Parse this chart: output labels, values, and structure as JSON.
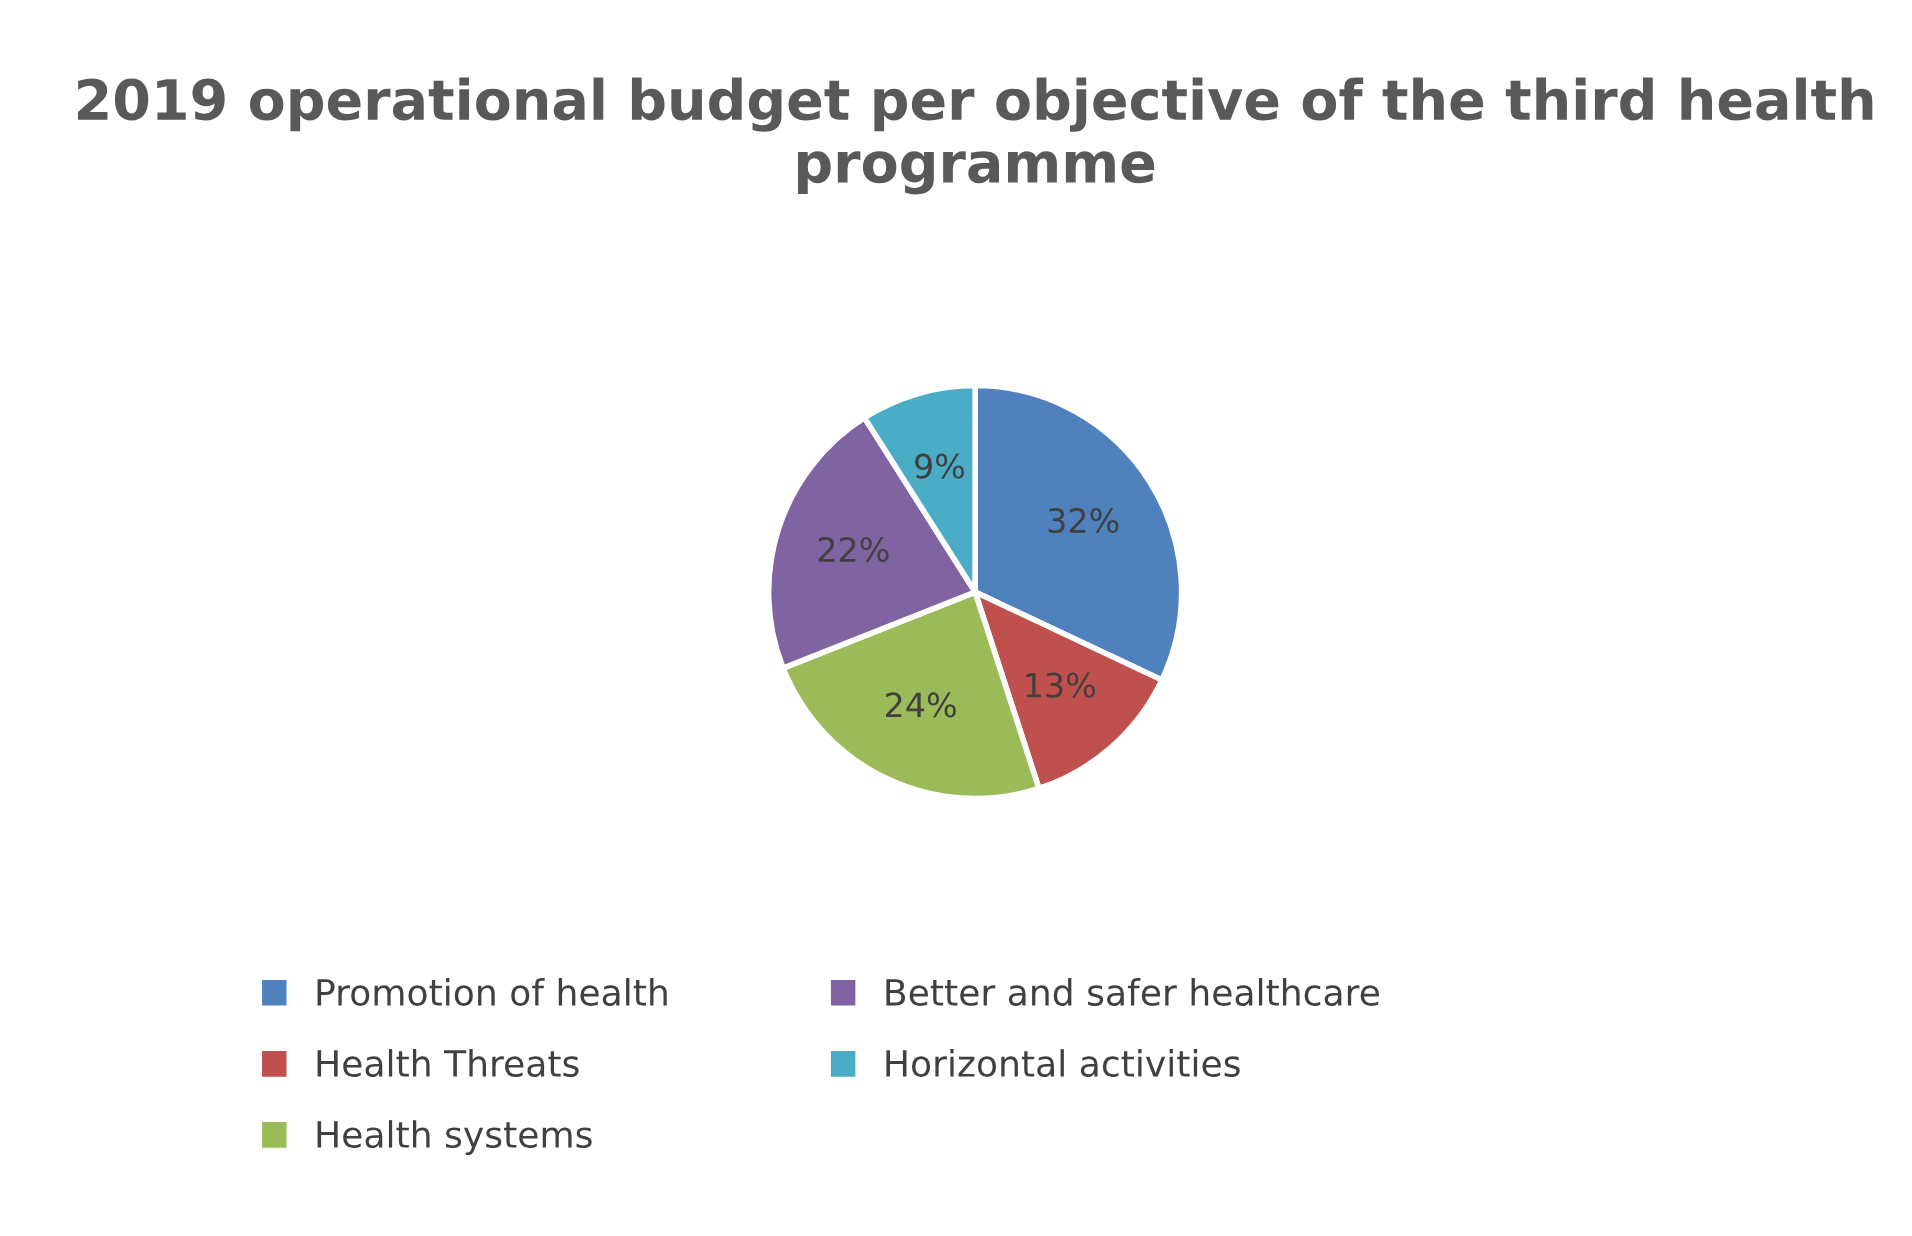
{
  "chart_data": {
    "type": "pie",
    "title": "2019 operational budget per objective of the third health programme",
    "categories": [
      "Promotion of health",
      "Health Threats",
      "Health systems",
      "Better and safer healthcare",
      "Horizontal activities"
    ],
    "values": [
      32,
      13,
      24,
      22,
      9
    ],
    "value_labels": [
      "32%",
      "13%",
      "24%",
      "22%",
      "9%"
    ],
    "colors": [
      "#4f81bd",
      "#c0504d",
      "#9bbb59",
      "#8064a2",
      "#4bacc6"
    ],
    "legend": "bottom"
  }
}
